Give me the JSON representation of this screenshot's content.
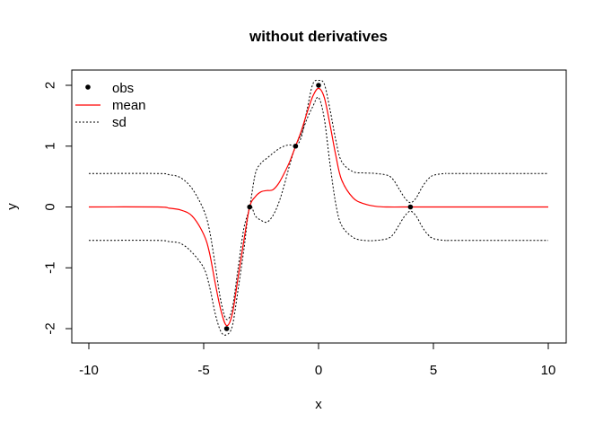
{
  "chart_data": {
    "type": "line",
    "title": "without derivatives",
    "xlabel": "x",
    "ylabel": "y",
    "xlim": [
      -10,
      10
    ],
    "ylim": [
      -2.15,
      2.15
    ],
    "xticks": [
      -10,
      -5,
      0,
      5,
      10
    ],
    "yticks": [
      -2,
      -1,
      0,
      1,
      2
    ],
    "grid": false,
    "legend_position": "top-left",
    "colors": {
      "obs": "#000000",
      "mean": "#ff0000",
      "sd": "#000000"
    },
    "legend": [
      {
        "label": "obs",
        "kind": "point"
      },
      {
        "label": "mean",
        "kind": "solid"
      },
      {
        "label": "sd",
        "kind": "dotted"
      }
    ],
    "obs": {
      "x": [
        -4,
        -3,
        -1,
        0,
        4
      ],
      "y": [
        -2,
        0,
        1,
        2,
        0
      ]
    },
    "mean": {
      "x": [
        -10,
        -7,
        -6.5,
        -6,
        -5.5,
        -5,
        -4.75,
        -4.5,
        -4.25,
        -4,
        -3.75,
        -3.5,
        -3.25,
        -3,
        -2.75,
        -2.5,
        -2.25,
        -2,
        -1.75,
        -1.5,
        -1.25,
        -1,
        -0.75,
        -0.5,
        -0.25,
        0,
        0.25,
        0.5,
        0.75,
        1,
        1.5,
        2,
        2.5,
        3,
        4,
        5,
        10
      ],
      "y": [
        0,
        0,
        -0.02,
        -0.05,
        -0.15,
        -0.45,
        -0.75,
        -1.25,
        -1.7,
        -1.95,
        -1.75,
        -1.15,
        -0.55,
        0,
        0.17,
        0.25,
        0.27,
        0.28,
        0.38,
        0.55,
        0.75,
        1,
        1.25,
        1.55,
        1.82,
        1.95,
        1.8,
        1.35,
        0.85,
        0.45,
        0.15,
        0.05,
        0.01,
        0,
        0,
        0,
        0
      ]
    },
    "sd_upper": {
      "x": [
        -10,
        -7,
        -6.5,
        -6,
        -5.5,
        -5,
        -4.75,
        -4.5,
        -4.25,
        -4,
        -3.75,
        -3.5,
        -3.25,
        -3,
        -2.75,
        -2.5,
        -2.25,
        -2,
        -1.75,
        -1.5,
        -1.25,
        -1,
        -0.75,
        -0.5,
        -0.25,
        0,
        0.25,
        0.5,
        0.75,
        1,
        1.5,
        2,
        2.5,
        3,
        3.25,
        3.5,
        3.75,
        4,
        4.25,
        4.5,
        4.75,
        5,
        5.5,
        6,
        10
      ],
      "y": [
        0.55,
        0.55,
        0.53,
        0.48,
        0.3,
        -0.05,
        -0.38,
        -0.95,
        -1.55,
        -1.85,
        -1.65,
        -1.0,
        -0.35,
        0,
        0.55,
        0.72,
        0.8,
        0.88,
        0.95,
        1.0,
        1.02,
        1.0,
        1.15,
        1.6,
        2.02,
        2.08,
        2.02,
        1.6,
        1.1,
        0.75,
        0.58,
        0.56,
        0.55,
        0.52,
        0.45,
        0.3,
        0.15,
        0.07,
        0.15,
        0.32,
        0.45,
        0.52,
        0.55,
        0.55,
        0.55
      ]
    },
    "sd_lower": {
      "x": [
        -10,
        -7,
        -6.5,
        -6,
        -5.5,
        -5,
        -4.75,
        -4.5,
        -4.25,
        -4,
        -3.75,
        -3.5,
        -3.25,
        -3,
        -2.75,
        -2.5,
        -2.25,
        -2,
        -1.75,
        -1.5,
        -1.25,
        -1,
        -0.75,
        -0.5,
        -0.25,
        0,
        0.25,
        0.5,
        0.75,
        1,
        1.5,
        2,
        2.5,
        3,
        3.25,
        3.5,
        3.75,
        4,
        4.25,
        4.5,
        4.75,
        5,
        5.5,
        6,
        10
      ],
      "y": [
        -0.55,
        -0.55,
        -0.57,
        -0.6,
        -0.75,
        -1.0,
        -1.3,
        -1.75,
        -2.05,
        -2.1,
        -1.95,
        -1.35,
        -0.7,
        0,
        -0.15,
        -0.22,
        -0.25,
        -0.15,
        0.05,
        0.35,
        0.7,
        1.0,
        1.2,
        1.45,
        1.65,
        1.8,
        1.45,
        0.7,
        0.05,
        -0.3,
        -0.5,
        -0.55,
        -0.55,
        -0.52,
        -0.45,
        -0.3,
        -0.15,
        -0.07,
        -0.15,
        -0.32,
        -0.45,
        -0.52,
        -0.55,
        -0.55,
        -0.55
      ]
    }
  }
}
